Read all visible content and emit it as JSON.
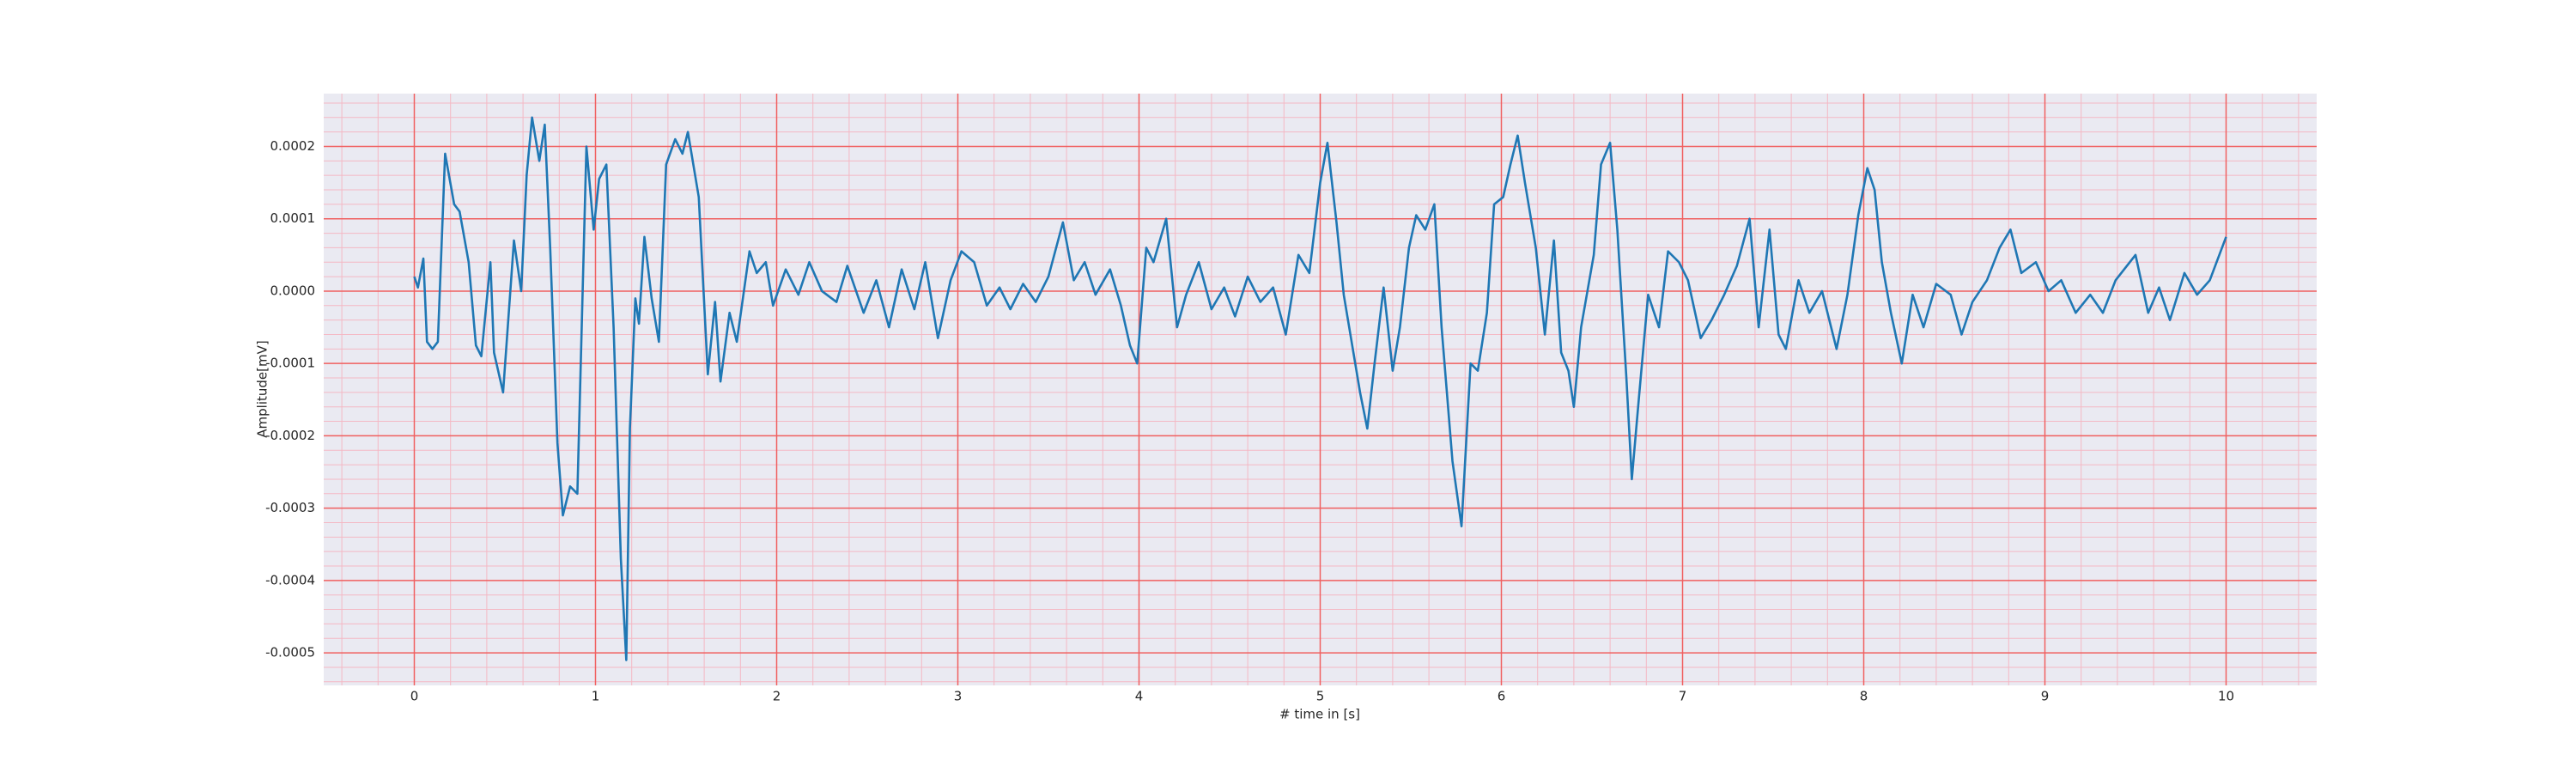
{
  "chart_data": {
    "type": "line",
    "xlabel": "# time in [s]",
    "ylabel": "Amplitude[mV]",
    "color": "#1f77b4",
    "grid": true,
    "minor_grid": true,
    "grid_color": "#f06060",
    "minor_grid_color": "#f4b8c4",
    "background": "#eaeaf2",
    "xlim": [
      -0.5,
      10.5
    ],
    "xticks": [
      0,
      1,
      2,
      3,
      4,
      5,
      6,
      7,
      8,
      9,
      10
    ],
    "ylim": [
      -0.000545,
      0.000273
    ],
    "yticks": [
      -0.0005,
      -0.0004,
      -0.0003,
      -0.0002,
      -0.0001,
      {
        "value": 0,
        "label": "0.0000"
      },
      0.0001,
      0.0002
    ],
    "x": [
      0,
      0.02,
      0.05,
      0.07,
      0.1,
      0.13,
      0.17,
      0.22,
      0.25,
      0.3,
      0.34,
      0.37,
      0.42,
      0.44,
      0.49,
      0.55,
      0.59,
      0.62,
      0.65,
      0.69,
      0.72,
      0.75,
      0.79,
      0.82,
      0.86,
      0.9,
      0.95,
      0.99,
      1.02,
      1.06,
      1.1,
      1.14,
      1.17,
      1.19,
      1.22,
      1.24,
      1.27,
      1.31,
      1.35,
      1.39,
      1.44,
      1.48,
      1.51,
      1.57,
      1.62,
      1.66,
      1.69,
      1.74,
      1.78,
      1.85,
      1.89,
      1.94,
      1.98,
      2.05,
      2.12,
      2.18,
      2.25,
      2.33,
      2.39,
      2.48,
      2.55,
      2.62,
      2.69,
      2.76,
      2.82,
      2.89,
      2.96,
      3.02,
      3.09,
      3.16,
      3.23,
      3.29,
      3.36,
      3.43,
      3.5,
      3.58,
      3.64,
      3.7,
      3.76,
      3.84,
      3.9,
      3.95,
      3.99,
      4.04,
      4.08,
      4.15,
      4.21,
      4.26,
      4.33,
      4.4,
      4.47,
      4.53,
      4.6,
      4.67,
      4.74,
      4.81,
      4.88,
      4.94,
      5.0,
      5.04,
      5.09,
      5.13,
      5.18,
      5.22,
      5.26,
      5.3,
      5.35,
      5.4,
      5.44,
      5.49,
      5.53,
      5.58,
      5.63,
      5.67,
      5.73,
      5.78,
      5.83,
      5.87,
      5.92,
      5.96,
      6.01,
      6.05,
      6.09,
      6.13,
      6.19,
      6.24,
      6.29,
      6.33,
      6.37,
      6.4,
      6.44,
      6.51,
      6.55,
      6.6,
      6.64,
      6.69,
      6.72,
      6.76,
      6.81,
      6.87,
      6.92,
      6.98,
      7.03,
      7.1,
      7.16,
      7.23,
      7.3,
      7.37,
      7.42,
      7.48,
      7.53,
      7.57,
      7.64,
      7.7,
      7.77,
      7.85,
      7.91,
      7.97,
      8.02,
      8.06,
      8.1,
      8.15,
      8.21,
      8.27,
      8.33,
      8.4,
      8.48,
      8.54,
      8.6,
      8.68,
      8.75,
      8.81,
      8.87,
      8.95,
      9.02,
      9.09,
      9.17,
      9.25,
      9.32,
      9.39,
      9.5,
      9.57,
      9.63,
      9.69,
      9.77,
      9.84,
      9.91,
      10.0
    ],
    "values": [
      2e-05,
      5e-06,
      4.5e-05,
      -7e-05,
      -8e-05,
      -7e-05,
      0.00019,
      0.00012,
      0.00011,
      4e-05,
      -7.5e-05,
      -9e-05,
      4e-05,
      -8.5e-05,
      -0.00014,
      7e-05,
      0,
      0.00016,
      0.00024,
      0.00018,
      0.00023,
      6e-05,
      -0.00021,
      -0.00031,
      -0.00027,
      -0.00028,
      0.0002,
      8.5e-05,
      0.000155,
      0.000175,
      -5e-05,
      -0.00037,
      -0.00051,
      -0.00019,
      -1e-05,
      -4.5e-05,
      7.5e-05,
      -1e-05,
      -7e-05,
      0.000175,
      0.00021,
      0.00019,
      0.00022,
      0.00013,
      -0.000115,
      -1.5e-05,
      -0.000125,
      -3e-05,
      -7e-05,
      5.5e-05,
      2.5e-05,
      4e-05,
      -2e-05,
      3e-05,
      -5e-06,
      4e-05,
      0,
      -1.5e-05,
      3.5e-05,
      -3e-05,
      1.5e-05,
      -5e-05,
      3e-05,
      -2.5e-05,
      4e-05,
      -6.5e-05,
      1.5e-05,
      5.5e-05,
      4e-05,
      -2e-05,
      5e-06,
      -2.5e-05,
      1e-05,
      -1.5e-05,
      2e-05,
      9.5e-05,
      1.5e-05,
      4e-05,
      -5e-06,
      3e-05,
      -2e-05,
      -7.5e-05,
      -0.0001,
      6e-05,
      4e-05,
      0.0001,
      -5e-05,
      -5e-06,
      4e-05,
      -2.5e-05,
      5e-06,
      -3.5e-05,
      2e-05,
      -1.5e-05,
      5e-06,
      -6e-05,
      5e-05,
      2.5e-05,
      0.00015,
      0.000205,
      9.5e-05,
      -5e-06,
      -8e-05,
      -0.00014,
      -0.00019,
      -0.0001,
      5e-06,
      -0.00011,
      -5e-05,
      6e-05,
      0.000105,
      8.5e-05,
      0.00012,
      -5e-05,
      -0.000235,
      -0.000325,
      -0.0001,
      -0.00011,
      -3e-05,
      0.00012,
      0.00013,
      0.000175,
      0.000215,
      0.00015,
      6e-05,
      -6e-05,
      7e-05,
      -8.5e-05,
      -0.00011,
      -0.00016,
      -5e-05,
      5e-05,
      0.000175,
      0.000205,
      8.5e-05,
      -0.00012,
      -0.00026,
      -0.000145,
      -5e-06,
      -5e-05,
      5.5e-05,
      4e-05,
      1.5e-05,
      -6.5e-05,
      -4e-05,
      -5e-06,
      3.5e-05,
      0.0001,
      -5e-05,
      8.5e-05,
      -6e-05,
      -8e-05,
      1.5e-05,
      -3e-05,
      0,
      -8e-05,
      -5e-06,
      0.000105,
      0.00017,
      0.00014,
      4e-05,
      -3e-05,
      -0.0001,
      -5e-06,
      -5e-05,
      1e-05,
      -5e-06,
      -6e-05,
      -1.5e-05,
      1.5e-05,
      6e-05,
      8.5e-05,
      2.5e-05,
      4e-05,
      0,
      1.5e-05,
      -3e-05,
      -5e-06,
      -3e-05,
      1.5e-05,
      5e-05,
      -3e-05,
      5e-06,
      -4e-05,
      2.5e-05,
      -5e-06,
      1.5e-05,
      7.5e-05
    ]
  }
}
